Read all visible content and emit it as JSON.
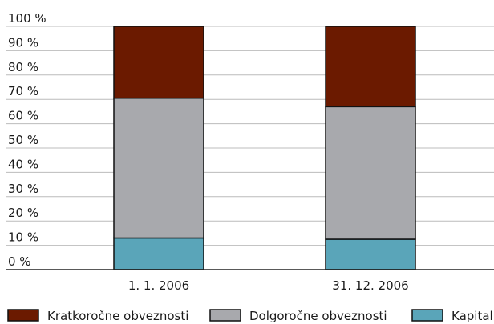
{
  "chart_data": {
    "type": "bar",
    "stacked": true,
    "percent": true,
    "title": "",
    "xlabel": "",
    "ylabel": "",
    "ylim": [
      0,
      100
    ],
    "yticks": [
      0,
      10,
      20,
      30,
      40,
      50,
      60,
      70,
      80,
      90,
      100
    ],
    "ytick_labels": [
      "0 %",
      "10 %",
      "20 %",
      "30 %",
      "40 %",
      "50 %",
      "60 %",
      "70 %",
      "80 %",
      "90 %",
      "100 %"
    ],
    "grid": true,
    "legend_position": "bottom",
    "categories": [
      "1. 1. 2006",
      "31. 12. 2006"
    ],
    "series": [
      {
        "name": "Kapital",
        "color": "#5aa5b9",
        "values": [
          13,
          12.5
        ]
      },
      {
        "name": "Dolgoročne obveznosti",
        "color": "#a8a9ad",
        "values": [
          57.5,
          54.5
        ]
      },
      {
        "name": "Kratkoročne obveznosti",
        "color": "#6b1a00",
        "values": [
          29.5,
          33
        ]
      }
    ],
    "legend_order": [
      "Kratkoročne obveznosti",
      "Dolgoročne obveznosti",
      "Kapital"
    ]
  }
}
